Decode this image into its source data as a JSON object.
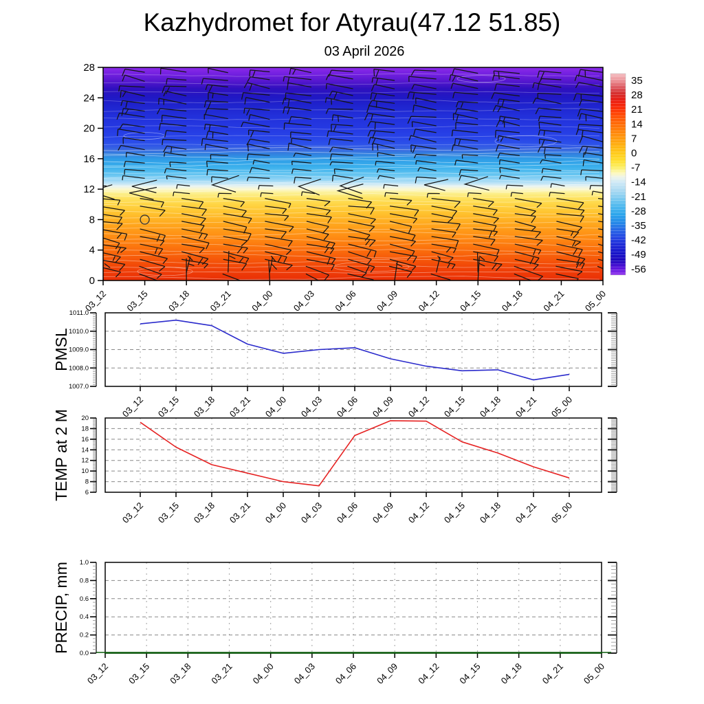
{
  "title": "Kazhydromet for Atyrau(47.12 51.85)",
  "subtitle": "03 April 2026",
  "time_labels": [
    "03_12",
    "03_15",
    "03_18",
    "03_21",
    "04_00",
    "04_03",
    "04_06",
    "04_09",
    "04_12",
    "04_15",
    "04_18",
    "04_21",
    "05_00"
  ],
  "cross_section": {
    "y_tick_labels": [
      "28",
      "24",
      "20",
      "16",
      "12",
      "8",
      "4",
      "0"
    ],
    "ylim": [
      0,
      28
    ],
    "contour_color": "#FFFFFF",
    "barb_color": "#141414",
    "barb_seed": 7,
    "calm_marker": {
      "time_index": 1,
      "height": 8
    },
    "gradient_stops": [
      [
        0.0,
        "#8B2BE9"
      ],
      [
        0.03,
        "#7420E0"
      ],
      [
        0.065,
        "#5517CE"
      ],
      [
        0.1,
        "#2F10BE"
      ],
      [
        0.14,
        "#2018C4"
      ],
      [
        0.18,
        "#1F24CE"
      ],
      [
        0.23,
        "#2230DA"
      ],
      [
        0.285,
        "#2539E2"
      ],
      [
        0.33,
        "#2844E8"
      ],
      [
        0.36,
        "#2C51E9"
      ],
      [
        0.385,
        "#3A68E0"
      ],
      [
        0.405,
        "#3380DF"
      ],
      [
        0.43,
        "#2F9CE7"
      ],
      [
        0.465,
        "#39AFEC"
      ],
      [
        0.5,
        "#5FC2F0"
      ],
      [
        0.525,
        "#8FD3F4"
      ],
      [
        0.545,
        "#C2E5F6"
      ],
      [
        0.558,
        "#E8F3EF"
      ],
      [
        0.572,
        "#FCF8CF"
      ],
      [
        0.59,
        "#FCF090"
      ],
      [
        0.615,
        "#FEE25E"
      ],
      [
        0.645,
        "#FFD443"
      ],
      [
        0.68,
        "#FFC430"
      ],
      [
        0.715,
        "#FFB224"
      ],
      [
        0.75,
        "#FFA01A"
      ],
      [
        0.79,
        "#FF8F14"
      ],
      [
        0.825,
        "#FD7E10"
      ],
      [
        0.86,
        "#FA6C0C"
      ],
      [
        0.895,
        "#F65A0A"
      ],
      [
        0.93,
        "#F24908"
      ],
      [
        0.965,
        "#EE3A07"
      ],
      [
        1.0,
        "#E93007"
      ]
    ]
  },
  "colorbar": {
    "tick_labels": [
      "35",
      "28",
      "21",
      "14",
      "7",
      "0",
      "-7",
      "-14",
      "-21",
      "-28",
      "-35",
      "-42",
      "-49",
      "-56"
    ],
    "gradient_stops": [
      [
        0.0,
        "#F5BEC2"
      ],
      [
        0.035,
        "#EC9297"
      ],
      [
        0.07,
        "#DC555C"
      ],
      [
        0.1,
        "#D62D2C"
      ],
      [
        0.13,
        "#E81E14"
      ],
      [
        0.165,
        "#F82808"
      ],
      [
        0.195,
        "#FF4205"
      ],
      [
        0.23,
        "#FF5E06"
      ],
      [
        0.265,
        "#FF7508"
      ],
      [
        0.3,
        "#FF8C0C"
      ],
      [
        0.335,
        "#FFA30F"
      ],
      [
        0.37,
        "#FFBB13"
      ],
      [
        0.4,
        "#FFCD1C"
      ],
      [
        0.435,
        "#FFE032"
      ],
      [
        0.465,
        "#FBEE64"
      ],
      [
        0.495,
        "#FDF9BE"
      ],
      [
        0.515,
        "#EDF4EA"
      ],
      [
        0.54,
        "#CFE9F6"
      ],
      [
        0.58,
        "#ABDAF2"
      ],
      [
        0.62,
        "#7CCAF0"
      ],
      [
        0.66,
        "#4DB8EE"
      ],
      [
        0.7,
        "#2BA5EC"
      ],
      [
        0.74,
        "#2489E8"
      ],
      [
        0.78,
        "#2663E6"
      ],
      [
        0.82,
        "#2441E2"
      ],
      [
        0.855,
        "#1D27D6"
      ],
      [
        0.895,
        "#1713C8"
      ],
      [
        0.93,
        "#2008BE"
      ],
      [
        0.965,
        "#5A14DC"
      ],
      [
        1.0,
        "#9030EE"
      ]
    ]
  },
  "panels": {
    "pmsl": {
      "label": "PMSL",
      "y_tick_labels": [
        "1011.0",
        "1010.0",
        "1009.0",
        "1008.0",
        "1007.0"
      ],
      "line_color": "#2A2ACC"
    },
    "temp": {
      "label": "TEMP at 2 M",
      "y_tick_labels": [
        "20",
        "18",
        "16",
        "14",
        "12",
        "10",
        "8",
        "6"
      ],
      "line_color": "#E62222"
    },
    "precip": {
      "label": "PRECIP, mm",
      "y_tick_labels": [
        "1.0",
        "0.8",
        "0.6",
        "0.4",
        "0.2",
        "0.0"
      ],
      "line_color": "#0A5C0A"
    }
  },
  "chart_data": [
    {
      "type": "heatmap",
      "name": "upper-air temperature cross-section with wind barbs",
      "categories": [
        "03_12",
        "03_15",
        "03_18",
        "03_21",
        "04_00",
        "04_03",
        "04_06",
        "04_09",
        "04_12",
        "04_15",
        "04_18",
        "04_21",
        "05_00"
      ],
      "y_ticks": [
        0,
        4,
        8,
        12,
        16,
        20,
        24,
        28
      ],
      "ylim": [
        0,
        28
      ],
      "colorbar_ticks": [
        35,
        28,
        21,
        14,
        7,
        0,
        -7,
        -14,
        -21,
        -28,
        -35,
        -42,
        -49,
        -56
      ],
      "legend_position": "right",
      "grid": false
    },
    {
      "type": "line",
      "name": "PMSL",
      "categories": [
        "03_12",
        "03_15",
        "03_18",
        "03_21",
        "04_00",
        "04_03",
        "04_06",
        "04_09",
        "04_12",
        "04_15",
        "04_18",
        "04_21",
        "05_00"
      ],
      "values": [
        1010.4,
        1010.6,
        1010.3,
        1009.3,
        1008.8,
        1009.0,
        1009.1,
        1008.5,
        1008.1,
        1007.85,
        1007.9,
        1007.35,
        1007.65
      ],
      "ylim": [
        1007.0,
        1011.0
      ],
      "ylabel": "PMSL",
      "grid": true
    },
    {
      "type": "line",
      "name": "TEMP at 2 M",
      "categories": [
        "03_12",
        "03_15",
        "03_18",
        "03_21",
        "04_00",
        "04_03",
        "04_06",
        "04_09",
        "04_12",
        "04_15",
        "04_18",
        "04_21",
        "05_00"
      ],
      "values": [
        19.2,
        14.5,
        11.2,
        9.6,
        8.0,
        7.2,
        16.7,
        19.5,
        19.4,
        15.5,
        13.4,
        10.8,
        8.7
      ],
      "ylim": [
        6,
        20
      ],
      "ylabel": "TEMP at 2 M",
      "grid": true
    },
    {
      "type": "line",
      "name": "PRECIP, mm",
      "categories": [
        "03_12",
        "03_15",
        "03_18",
        "03_21",
        "04_00",
        "04_03",
        "04_06",
        "04_09",
        "04_12",
        "04_15",
        "04_18",
        "04_21",
        "05_00"
      ],
      "values": [
        0,
        0,
        0,
        0,
        0,
        0,
        0,
        0,
        0,
        0,
        0,
        0,
        0
      ],
      "ylim": [
        0.0,
        1.0
      ],
      "ylabel": "PRECIP, mm",
      "grid": true
    }
  ]
}
